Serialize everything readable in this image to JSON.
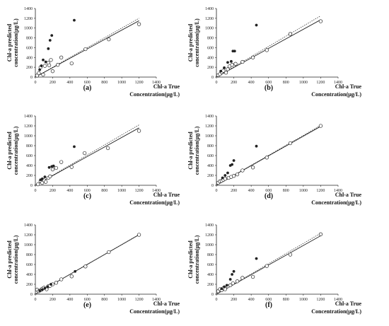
{
  "figure": {
    "background": "#ffffff",
    "ink": "#222222"
  },
  "chart_data": [
    {
      "type": "scatter",
      "panel_label": "(a)",
      "xlabel_line1": "Chl-a True",
      "xlabel_line2": "Concentration(μg/L)",
      "ylabel_line1": "Chl-a predicted",
      "ylabel_line2": "concentration(μg/L)",
      "xlim": [
        0,
        1400
      ],
      "ylim": [
        0,
        1400
      ],
      "xticks": [
        "0",
        "200",
        "400",
        "600",
        "800",
        "1000",
        "1200",
        "1400"
      ],
      "yticks": [
        "0",
        "200",
        "400",
        "600",
        "800",
        "1000",
        "1200",
        "1400"
      ],
      "grid": false,
      "series": [
        {
          "marker": "open-circle",
          "points": [
            [
              20,
              30
            ],
            [
              40,
              80
            ],
            [
              60,
              200
            ],
            [
              90,
              50
            ],
            [
              110,
              230
            ],
            [
              150,
              290
            ],
            [
              160,
              240
            ],
            [
              180,
              350
            ],
            [
              200,
              120
            ],
            [
              260,
              250
            ],
            [
              300,
              400
            ],
            [
              420,
              280
            ],
            [
              580,
              570
            ],
            [
              850,
              770
            ],
            [
              1200,
              1080
            ]
          ]
        },
        {
          "marker": "filled-dot",
          "points": [
            [
              50,
              150
            ],
            [
              70,
              230
            ],
            [
              90,
              350
            ],
            [
              120,
              310
            ],
            [
              150,
              580
            ],
            [
              170,
              750
            ],
            [
              190,
              850
            ],
            [
              450,
              1160
            ]
          ]
        }
      ],
      "lines": [
        {
          "style": "solid",
          "points": [
            [
              0,
              0
            ],
            [
              1200,
              1150
            ]
          ]
        },
        {
          "style": "dotted",
          "points": [
            [
              0,
              0
            ],
            [
              1200,
              1200
            ]
          ]
        }
      ]
    },
    {
      "type": "scatter",
      "panel_label": "(b)",
      "xlabel_line1": "Chl-a True",
      "xlabel_line2": "Concentration(μg/L)",
      "ylabel_line1": "Chl-a predicted",
      "ylabel_line2": "concentration(μg/L)",
      "xlim": [
        0,
        1400
      ],
      "ylim": [
        0,
        1400
      ],
      "xticks": [
        "0",
        "200",
        "400",
        "600",
        "800",
        "1000",
        "1200",
        "1400"
      ],
      "yticks": [
        "0",
        "200",
        "400",
        "600",
        "800",
        "1000",
        "1200",
        "1400"
      ],
      "grid": false,
      "series": [
        {
          "marker": "open-circle",
          "points": [
            [
              20,
              40
            ],
            [
              40,
              60
            ],
            [
              60,
              100
            ],
            [
              80,
              130
            ],
            [
              110,
              90
            ],
            [
              130,
              160
            ],
            [
              150,
              220
            ],
            [
              180,
              250
            ],
            [
              220,
              270
            ],
            [
              300,
              310
            ],
            [
              420,
              400
            ],
            [
              580,
              550
            ],
            [
              850,
              880
            ],
            [
              1200,
              1140
            ]
          ]
        },
        {
          "marker": "filled-dot",
          "points": [
            [
              50,
              120
            ],
            [
              90,
              190
            ],
            [
              130,
              300
            ],
            [
              170,
              320
            ],
            [
              190,
              530
            ],
            [
              210,
              530
            ],
            [
              460,
              1060
            ]
          ]
        }
      ],
      "lines": [
        {
          "style": "solid",
          "points": [
            [
              0,
              0
            ],
            [
              1200,
              1170
            ]
          ]
        },
        {
          "style": "dotted",
          "points": [
            [
              0,
              0
            ],
            [
              1200,
              1250
            ]
          ]
        }
      ]
    },
    {
      "type": "scatter",
      "panel_label": "(c)",
      "xlabel_line1": "Chl-a True",
      "xlabel_line2": "Concentration(μg/L)",
      "ylabel_line1": "Chl-a predicted",
      "ylabel_line2": "concentration(μg/L)",
      "xlim": [
        0,
        1400
      ],
      "ylim": [
        0,
        1400
      ],
      "xticks": [
        "0",
        "200",
        "400",
        "600",
        "800",
        "1000",
        "1200",
        "1400"
      ],
      "yticks": [
        "0",
        "200",
        "400",
        "600",
        "800",
        "1000",
        "1200",
        "1400"
      ],
      "grid": false,
      "series": [
        {
          "marker": "open-circle",
          "points": [
            [
              30,
              20
            ],
            [
              60,
              80
            ],
            [
              80,
              50
            ],
            [
              100,
              100
            ],
            [
              120,
              70
            ],
            [
              150,
              150
            ],
            [
              170,
              180
            ],
            [
              200,
              320
            ],
            [
              240,
              350
            ],
            [
              300,
              470
            ],
            [
              420,
              370
            ],
            [
              570,
              650
            ],
            [
              840,
              750
            ],
            [
              1200,
              1100
            ]
          ]
        },
        {
          "marker": "filled-dot",
          "points": [
            [
              60,
              110
            ],
            [
              80,
              130
            ],
            [
              110,
              170
            ],
            [
              160,
              360
            ],
            [
              190,
              380
            ],
            [
              210,
              390
            ],
            [
              450,
              780
            ]
          ]
        }
      ],
      "lines": [
        {
          "style": "solid",
          "points": [
            [
              0,
              0
            ],
            [
              1200,
              1160
            ]
          ]
        },
        {
          "style": "dotted",
          "points": [
            [
              0,
              0
            ],
            [
              1200,
              1220
            ]
          ]
        }
      ]
    },
    {
      "type": "scatter",
      "panel_label": "(d)",
      "xlabel_line1": "Chl-a True",
      "xlabel_line2": "Concentration(μg/L)",
      "ylabel_line1": "Chl-a predicted",
      "ylabel_line2": "concentration(μg/L)",
      "xlim": [
        0,
        1400
      ],
      "ylim": [
        0,
        1400
      ],
      "xticks": [
        "0",
        "200",
        "400",
        "600",
        "800",
        "1000",
        "1200",
        "1400"
      ],
      "yticks": [
        "0",
        "200",
        "400",
        "600",
        "800",
        "1000",
        "1200",
        "1400"
      ],
      "grid": false,
      "series": [
        {
          "marker": "open-circle",
          "points": [
            [
              20,
              50
            ],
            [
              40,
              80
            ],
            [
              60,
              90
            ],
            [
              80,
              110
            ],
            [
              100,
              130
            ],
            [
              140,
              150
            ],
            [
              170,
              170
            ],
            [
              200,
              190
            ],
            [
              240,
              220
            ],
            [
              300,
              300
            ],
            [
              420,
              360
            ],
            [
              580,
              560
            ],
            [
              850,
              850
            ],
            [
              1200,
              1200
            ]
          ]
        },
        {
          "marker": "filled-dot",
          "points": [
            [
              70,
              150
            ],
            [
              100,
              200
            ],
            [
              130,
              250
            ],
            [
              160,
              400
            ],
            [
              180,
              420
            ],
            [
              200,
              500
            ],
            [
              460,
              790
            ]
          ]
        }
      ],
      "lines": [
        {
          "style": "solid",
          "points": [
            [
              0,
              0
            ],
            [
              1200,
              1190
            ]
          ]
        },
        {
          "style": "dotted",
          "points": [
            [
              0,
              0
            ],
            [
              1200,
              1210
            ]
          ]
        }
      ]
    },
    {
      "type": "scatter",
      "panel_label": "(e)",
      "xlabel_line1": "Chl-a True",
      "xlabel_line2": "Concentration(μg/L)",
      "ylabel_line1": "Chl-a predicted",
      "ylabel_line2": "concentration(μg/L)",
      "xlim": [
        0,
        1400
      ],
      "ylim": [
        0,
        1400
      ],
      "xticks": [
        "0",
        "200",
        "400",
        "600",
        "800",
        "1000",
        "1200",
        "1400"
      ],
      "yticks": [
        "0",
        "200",
        "400",
        "600",
        "800",
        "1000",
        "1200",
        "1400"
      ],
      "grid": false,
      "series": [
        {
          "marker": "open-circle",
          "points": [
            [
              20,
              90
            ],
            [
              40,
              60
            ],
            [
              60,
              80
            ],
            [
              80,
              110
            ],
            [
              100,
              130
            ],
            [
              130,
              100
            ],
            [
              150,
              160
            ],
            [
              170,
              170
            ],
            [
              200,
              200
            ],
            [
              240,
              230
            ],
            [
              300,
              300
            ],
            [
              420,
              360
            ],
            [
              580,
              560
            ],
            [
              850,
              850
            ],
            [
              1200,
              1200
            ]
          ]
        },
        {
          "marker": "filled-dot",
          "points": [
            [
              50,
              70
            ],
            [
              80,
              90
            ],
            [
              110,
              120
            ],
            [
              140,
              150
            ],
            [
              180,
              200
            ],
            [
              460,
              460
            ]
          ]
        }
      ],
      "lines": [
        {
          "style": "solid",
          "points": [
            [
              0,
              0
            ],
            [
              1200,
              1200
            ]
          ]
        },
        {
          "style": "dotted",
          "points": [
            [
              0,
              0
            ],
            [
              1200,
              1205
            ]
          ]
        }
      ]
    },
    {
      "type": "scatter",
      "panel_label": "(f)",
      "xlabel_line1": "Chl-a True",
      "xlabel_line2": "Concentration(μg/L)",
      "ylabel_line1": "Chl-a predicted",
      "ylabel_line2": "concentration(μg/L)",
      "xlim": [
        0,
        1400
      ],
      "ylim": [
        0,
        1400
      ],
      "xticks": [
        "0",
        "200",
        "400",
        "600",
        "800",
        "1000",
        "1200",
        "1400"
      ],
      "yticks": [
        "0",
        "200",
        "400",
        "600",
        "800",
        "1000",
        "1200",
        "1400"
      ],
      "grid": false,
      "series": [
        {
          "marker": "open-circle",
          "points": [
            [
              20,
              60
            ],
            [
              40,
              100
            ],
            [
              60,
              80
            ],
            [
              80,
              120
            ],
            [
              100,
              100
            ],
            [
              130,
              160
            ],
            [
              160,
              180
            ],
            [
              190,
              220
            ],
            [
              240,
              260
            ],
            [
              300,
              330
            ],
            [
              420,
              350
            ],
            [
              580,
              570
            ],
            [
              850,
              800
            ],
            [
              1200,
              1210
            ]
          ]
        },
        {
          "marker": "filled-dot",
          "points": [
            [
              60,
              110
            ],
            [
              90,
              150
            ],
            [
              120,
              180
            ],
            [
              160,
              300
            ],
            [
              180,
              400
            ],
            [
              200,
              460
            ],
            [
              460,
              720
            ]
          ]
        }
      ],
      "lines": [
        {
          "style": "solid",
          "points": [
            [
              0,
              0
            ],
            [
              1200,
              1180
            ]
          ]
        },
        {
          "style": "dotted",
          "points": [
            [
              0,
              0
            ],
            [
              1200,
              1230
            ]
          ]
        }
      ]
    }
  ]
}
